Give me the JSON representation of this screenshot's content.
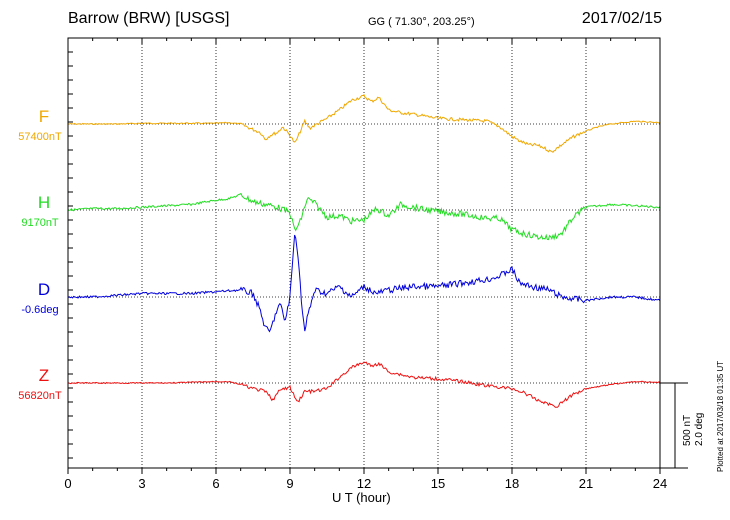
{
  "header": {
    "title": "Barrow (BRW)  [USGS]",
    "coords": "GG ( 71.30°, 203.25°)",
    "date": "2017/02/15"
  },
  "side_note": "Plotted at 2017/03/18 01:35 UT",
  "scale": {
    "nt": "500 nT",
    "deg": "2.0 deg"
  },
  "chart_data": {
    "type": "line",
    "xlabel": "U T (hour)",
    "xlim": [
      0,
      24
    ],
    "xticks": [
      0,
      3,
      6,
      9,
      12,
      15,
      18,
      21,
      24
    ],
    "grid": true,
    "scale_per_division": "500 nT / 2.0 deg",
    "series": [
      {
        "name": "F",
        "baseline_label": "57400nT",
        "color": "#f0a800",
        "unit": "nT",
        "x": [
          0,
          1,
          2,
          3,
          4,
          5,
          6,
          6.5,
          7,
          7.5,
          7.8,
          8,
          8.2,
          8.5,
          8.7,
          9,
          9.2,
          9.4,
          9.6,
          9.8,
          10,
          10.5,
          11,
          11.5,
          12,
          12.3,
          12.6,
          13,
          13.5,
          14,
          15,
          16,
          17,
          17.5,
          18,
          18.3,
          18.7,
          19,
          19.3,
          19.6,
          20,
          20.5,
          21,
          21.5,
          22,
          23,
          24
        ],
        "values": [
          0,
          0,
          0,
          5,
          5,
          5,
          5,
          10,
          0,
          -40,
          -60,
          -110,
          -80,
          -60,
          -20,
          -80,
          -140,
          -60,
          20,
          -30,
          -10,
          40,
          100,
          170,
          200,
          160,
          190,
          100,
          80,
          70,
          40,
          30,
          20,
          -20,
          -90,
          -120,
          -150,
          -150,
          -170,
          -200,
          -150,
          -90,
          -50,
          -20,
          0,
          20,
          10
        ]
      },
      {
        "name": "H",
        "baseline_label": "9170nT",
        "color": "#22dd22",
        "unit": "nT",
        "x": [
          0,
          1,
          2,
          3,
          4,
          5,
          6,
          6.5,
          7,
          7.5,
          8,
          8.5,
          9,
          9.2,
          9.4,
          9.7,
          10,
          10.5,
          11,
          11.5,
          12,
          12.5,
          13,
          13.5,
          14,
          14.5,
          15,
          16,
          17,
          17.5,
          18,
          18.5,
          19,
          19.5,
          20,
          20.5,
          21,
          22,
          23,
          24
        ],
        "values": [
          0,
          10,
          10,
          20,
          30,
          40,
          70,
          80,
          110,
          60,
          40,
          20,
          -20,
          -150,
          -90,
          80,
          50,
          -50,
          -40,
          -80,
          -70,
          10,
          -40,
          40,
          20,
          0,
          -10,
          -30,
          -60,
          -60,
          -140,
          -170,
          -190,
          -200,
          -170,
          -50,
          20,
          40,
          30,
          20
        ]
      },
      {
        "name": "D",
        "baseline_label": "-0.6deg",
        "color": "#0000dd",
        "unit": "deg",
        "x": [
          0,
          1,
          2,
          3,
          4,
          5,
          6,
          7,
          7.5,
          7.8,
          8,
          8.2,
          8.4,
          8.6,
          8.8,
          9,
          9.2,
          9.3,
          9.5,
          9.6,
          9.7,
          10,
          10.5,
          11,
          11.5,
          12,
          12.5,
          13,
          14,
          15,
          16,
          17,
          17.5,
          18,
          18.3,
          18.8,
          19.5,
          20,
          21,
          22,
          23,
          24
        ],
        "values": [
          0,
          0,
          0.05,
          0.1,
          0.1,
          0.1,
          0.15,
          0.2,
          0.1,
          -0.4,
          -0.9,
          -1.0,
          -0.5,
          -0.2,
          -0.7,
          0,
          1.9,
          1.4,
          -0.4,
          -1.0,
          -0.6,
          0.2,
          0.1,
          0.3,
          0,
          0.3,
          0.1,
          0.2,
          0.3,
          0.3,
          0.4,
          0.5,
          0.6,
          0.8,
          0.4,
          0.3,
          0.2,
          0,
          -0.1,
          0,
          0,
          -0.1
        ]
      },
      {
        "name": "Z",
        "baseline_label": "56820nT",
        "color": "#ee1111",
        "unit": "nT",
        "x": [
          0,
          1,
          2,
          3,
          4,
          5,
          6,
          6.5,
          7,
          7.5,
          8,
          8.3,
          8.6,
          9,
          9.3,
          9.6,
          10,
          10.5,
          11,
          11.5,
          12,
          12.3,
          12.6,
          13,
          13.5,
          14,
          15,
          16,
          17,
          17.5,
          18,
          18.5,
          19,
          19.5,
          19.8,
          20,
          20.5,
          21,
          22,
          23,
          24
        ],
        "values": [
          0,
          0,
          0,
          0,
          0,
          5,
          10,
          10,
          -10,
          -40,
          -60,
          -120,
          -50,
          -30,
          -140,
          -60,
          -60,
          -40,
          40,
          110,
          150,
          120,
          140,
          80,
          60,
          40,
          30,
          10,
          -20,
          -30,
          -40,
          -70,
          -120,
          -150,
          -170,
          -140,
          -80,
          -40,
          -10,
          10,
          5
        ]
      }
    ]
  }
}
